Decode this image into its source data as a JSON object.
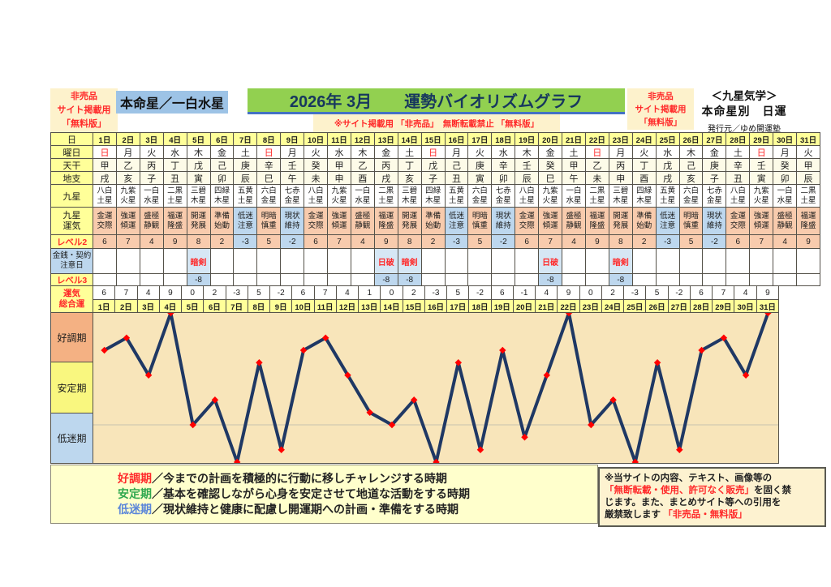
{
  "header": {
    "left_notice": {
      "line1": "非売品",
      "line2": "サイト掲載用",
      "line3": "「無料版」"
    },
    "honmeisei_label": "本命星／一白水星",
    "title_month": "2026年 3月",
    "title_main": "運勢バイオリズムグラフ",
    "subtitle": "※サイト掲載用 「非売品」　無断転載禁止 「無料版」",
    "right_notice": {
      "line1": "非売品",
      "line2": "サイト掲載用",
      "line3": "「無料版」"
    },
    "school": {
      "line1": "＜九星気学＞",
      "line2": "本命星別　日運",
      "line3": "発行元／ゆめ開運塾"
    }
  },
  "row_labels": {
    "day": "日",
    "youbi": "曜日",
    "tenkan": "天干",
    "chishi": "地支",
    "kyusei": "九星",
    "unki_l1": "九星",
    "unki_l2": "運気",
    "level2": "レベル2",
    "chuui_l1": "金銭・契約",
    "chuui_l2": "注意日",
    "level3": "レベル3",
    "total_l1": "運気",
    "total_l2": "総合運"
  },
  "table": {
    "categories": [
      1,
      2,
      3,
      4,
      5,
      6,
      7,
      8,
      9,
      10,
      11,
      12,
      13,
      14,
      15,
      16,
      17,
      18,
      19,
      20,
      21,
      22,
      23,
      24,
      25,
      26,
      27,
      28,
      29,
      30,
      31
    ],
    "day_suffix": "日",
    "youbi": [
      "日",
      "月",
      "火",
      "水",
      "木",
      "金",
      "土",
      "日",
      "月",
      "火",
      "水",
      "木",
      "金",
      "土",
      "日",
      "月",
      "火",
      "水",
      "木",
      "金",
      "土",
      "日",
      "月",
      "火",
      "水",
      "木",
      "金",
      "土",
      "日",
      "月",
      "火"
    ],
    "tenkan": [
      "甲",
      "乙",
      "丙",
      "丁",
      "戊",
      "己",
      "庚",
      "辛",
      "壬",
      "癸",
      "甲",
      "乙",
      "丙",
      "丁",
      "戊",
      "己",
      "庚",
      "辛",
      "壬",
      "癸",
      "甲",
      "乙",
      "丙",
      "丁",
      "戊",
      "己",
      "庚",
      "辛",
      "壬",
      "癸",
      "甲"
    ],
    "chishi": [
      "戌",
      "亥",
      "子",
      "丑",
      "寅",
      "卯",
      "辰",
      "巳",
      "午",
      "未",
      "申",
      "酉",
      "戌",
      "亥",
      "子",
      "丑",
      "寅",
      "卯",
      "辰",
      "巳",
      "午",
      "未",
      "申",
      "酉",
      "戌",
      "亥",
      "子",
      "丑",
      "寅",
      "卯",
      "辰"
    ],
    "kyusei": [
      "八白土星",
      "九紫火星",
      "一白水星",
      "二黒土星",
      "三碧木星",
      "四緑木星",
      "五黄土星",
      "六白金星",
      "七赤金星",
      "八白土星",
      "九紫火星",
      "一白水星",
      "二黒土星",
      "三碧木星",
      "四緑木星",
      "五黄土星",
      "六白金星",
      "七赤金星",
      "八白土星",
      "九紫火星",
      "一白水星",
      "二黒土星",
      "三碧木星",
      "四緑木星",
      "五黄土星",
      "六白金星",
      "七赤金星",
      "八白土星",
      "九紫火星",
      "一白水星",
      "二黒土星"
    ],
    "unki": [
      "金運交際",
      "強運傾運",
      "盛極静観",
      "福運隆盛",
      "開運発展",
      "準備始動",
      "低迷注意",
      "明暗慎重",
      "現状維持",
      "金運交際",
      "強運傾運",
      "盛極静観",
      "福運隆盛",
      "開運発展",
      "準備始動",
      "低迷注意",
      "明暗慎重",
      "現状維持",
      "金運交際",
      "強運傾運",
      "盛極静観",
      "福運隆盛",
      "開運発展",
      "準備始動",
      "低迷注意",
      "明暗慎重",
      "現状維持",
      "金運交際",
      "強運傾運",
      "盛極静観",
      "福運隆盛"
    ],
    "unki_blue": [
      "低迷注意",
      "現状維持"
    ],
    "level2": [
      6,
      7,
      4,
      9,
      8,
      2,
      -3,
      5,
      -2,
      6,
      7,
      4,
      9,
      8,
      2,
      -3,
      5,
      -2,
      6,
      7,
      4,
      9,
      8,
      2,
      -3,
      5,
      -2,
      6,
      7,
      4,
      9
    ],
    "chuui": {
      "5": "暗剣",
      "13": "日破",
      "14": "暗剣",
      "20": "日破",
      "23": "暗剣"
    },
    "level3": {
      "5": "-8",
      "13": "-8",
      "14": "-8",
      "20": "-8",
      "23": "-8"
    },
    "total": [
      6,
      7,
      4,
      9,
      0,
      2,
      -3,
      5,
      -2,
      6,
      7,
      4,
      1,
      0,
      2,
      -3,
      5,
      -2,
      6,
      -1,
      4,
      9,
      0,
      2,
      -3,
      5,
      -2,
      6,
      7,
      4,
      9
    ]
  },
  "bands": [
    {
      "label": "好調期",
      "bg": "#F4B183"
    },
    {
      "label": "安定期",
      "bg": "#F9F77F"
    },
    {
      "label": "低迷期",
      "bg": "#BDD7EE"
    }
  ],
  "chart_data": {
    "type": "line",
    "title": "2026年3月 運勢バイオリズムグラフ",
    "categories": [
      1,
      2,
      3,
      4,
      5,
      6,
      7,
      8,
      9,
      10,
      11,
      12,
      13,
      14,
      15,
      16,
      17,
      18,
      19,
      20,
      21,
      22,
      23,
      24,
      25,
      26,
      27,
      28,
      29,
      30,
      31
    ],
    "series": [
      {
        "name": "運気総合運",
        "values": [
          6,
          7,
          4,
          9,
          0,
          2,
          -3,
          5,
          -2,
          6,
          7,
          4,
          1,
          0,
          2,
          -3,
          5,
          -2,
          6,
          -1,
          4,
          9,
          0,
          2,
          -3,
          5,
          -2,
          6,
          7,
          4,
          9
        ]
      }
    ],
    "ylim": [
      -3.5,
      9.5
    ],
    "zero_line": 0,
    "zones": [
      {
        "label": "好調期",
        "y_range": [
          5,
          9
        ]
      },
      {
        "label": "安定期",
        "y_range": [
          1,
          5
        ]
      },
      {
        "label": "低迷期",
        "y_range": [
          -3.5,
          1
        ]
      }
    ],
    "line_color": "#1F3864",
    "marker_color": "#FF0000",
    "bg": "#F8E5BA",
    "grid": "zero-line-only",
    "legend_position": "none"
  },
  "legend": {
    "items": [
      {
        "term": "好調期",
        "color": "#FF2A2A",
        "desc": "／今までの計画を積極的に行動に移しチャレンジする時期"
      },
      {
        "term": "安定期",
        "color": "#2FA84F",
        "desc": "／基本を確認しながら心身を安定させて地道な活動をする時期"
      },
      {
        "term": "低迷期",
        "color": "#5B86D9",
        "desc": "／現状維持と健康に配慮し開運期への計画・準備をする時期"
      }
    ]
  },
  "notice": {
    "l1": "※当サイトの内容、テキスト、画像等の",
    "l2_red": "「無断転載・使用、許可なく販売」",
    "l2_black": "を固く禁",
    "l3": "じます。また、まとめサイト等への引用を",
    "l4_black": "厳禁致します ",
    "l4_red": "「非売品・無料版」"
  },
  "colors": {
    "yellow": "#FFFF99",
    "ivory": "#FDFBE8",
    "pink": "#F8CBAD",
    "blue": "#BDD7EE",
    "lightblue": "#D6E7F5",
    "red": "#FF2A2A",
    "navy": "#1F3864",
    "green_header": "#92D050",
    "chart_bg": "#F8E5BA",
    "sunday": "#FF2A2A"
  }
}
